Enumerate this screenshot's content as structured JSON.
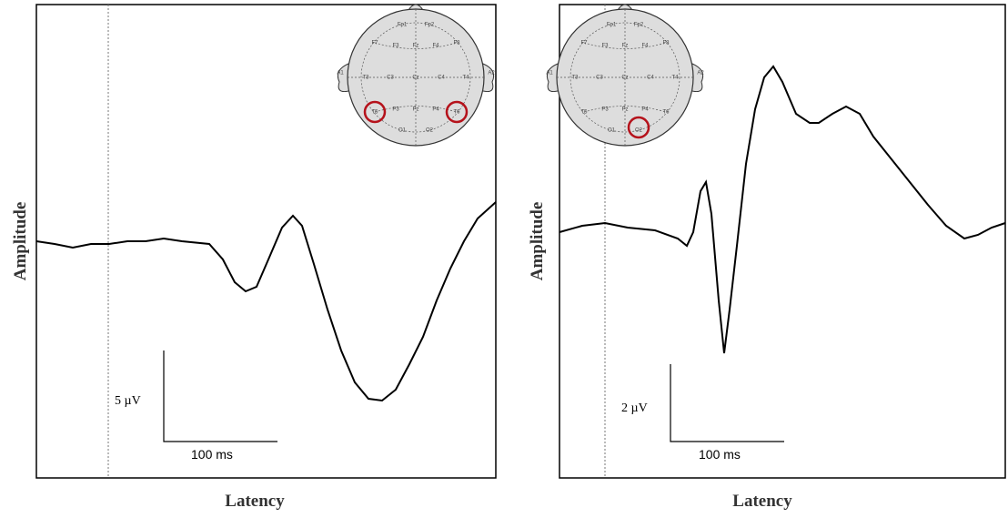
{
  "panels": [
    {
      "y_label": "Amplitude",
      "x_label": "Latency",
      "scale_amplitude": "5 µV",
      "scale_time": "100 ms"
    },
    {
      "y_label": "Amplitude",
      "x_label": "Latency",
      "scale_amplitude": "2 µV",
      "scale_time": "100 ms"
    }
  ],
  "head_electrodes": [
    "Fp1",
    "Fp2",
    "F7",
    "F3",
    "Fz",
    "F4",
    "F8",
    "A1",
    "T3",
    "C3",
    "Cz",
    "C4",
    "T4",
    "A2",
    "T5",
    "P3",
    "Pz",
    "P4",
    "T6",
    "O1",
    "O2"
  ]
}
